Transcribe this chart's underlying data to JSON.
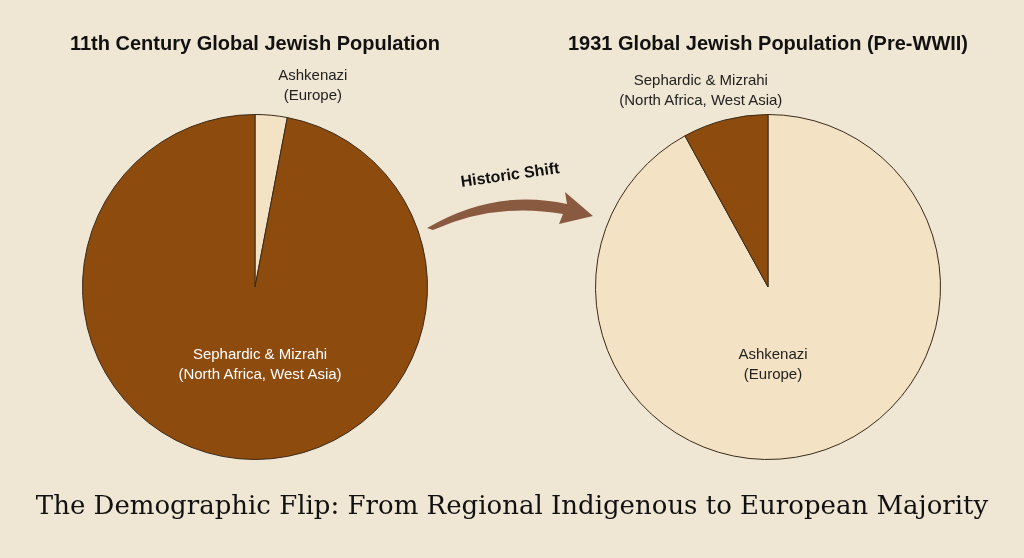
{
  "chart_data": [
    {
      "type": "pie",
      "title": "11th Century Global Jewish Population",
      "categories": [
        "Ashkenazi (Europe)",
        "Sephardic & Mizrahi (North Africa, West Asia)"
      ],
      "values": [
        3,
        97
      ],
      "colors": [
        "#f3e3c4",
        "#8e4b0e"
      ],
      "annotations": [
        "Historic Shift"
      ]
    },
    {
      "type": "pie",
      "title": "1931 Global Jewish Population (Pre-WWII)",
      "categories": [
        "Ashkenazi (Europe)",
        "Sephardic & Mizrahi (North Africa, West Asia)"
      ],
      "values": [
        92,
        8
      ],
      "colors": [
        "#f3e3c4",
        "#8e4b0e"
      ]
    },
    {
      "type": "other",
      "title": "The Demographic Flip: From Regional Indigenous to European Majority"
    }
  ]
}
